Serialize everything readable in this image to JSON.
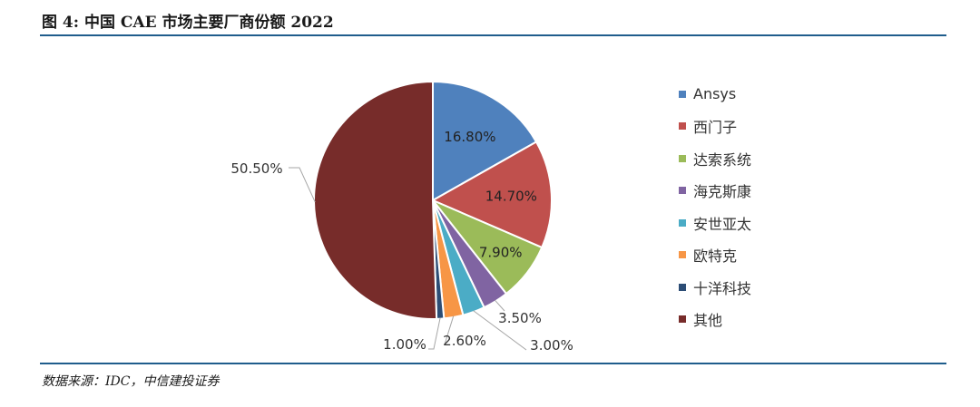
{
  "figure": {
    "title": "图 4: 中国 CAE 市场主要厂商份额 2022",
    "source": "数据来源：IDC，中信建投证券"
  },
  "chart_data": {
    "type": "pie",
    "title": "",
    "legend_position": "right",
    "slices": [
      {
        "label": "Ansys",
        "value": 16.8,
        "display": "16.80%",
        "color": "#4f81bd"
      },
      {
        "label": "西门子",
        "value": 14.7,
        "display": "14.70%",
        "color": "#c0504d"
      },
      {
        "label": "达索系统",
        "value": 7.9,
        "display": "7.90%",
        "color": "#9bbb59"
      },
      {
        "label": "海克斯康",
        "value": 3.5,
        "display": "3.50%",
        "color": "#8064a2"
      },
      {
        "label": "安世亚太",
        "value": 3.0,
        "display": "3.00%",
        "color": "#4bacc6"
      },
      {
        "label": "欧特克",
        "value": 2.6,
        "display": "2.60%",
        "color": "#f79646"
      },
      {
        "label": "十洋科技",
        "value": 1.0,
        "display": "1.00%",
        "color": "#2c4d75"
      },
      {
        "label": "其他",
        "value": 50.5,
        "display": "50.50%",
        "color": "#772c2a"
      }
    ]
  }
}
